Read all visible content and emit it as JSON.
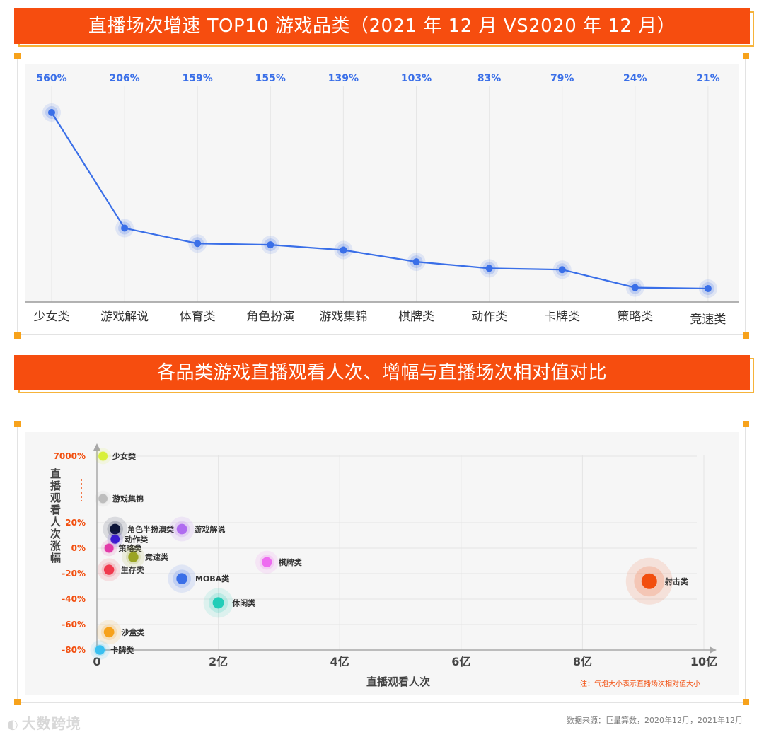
{
  "section1": {
    "title": "直播场次增速 TOP10 游戏品类（2021 年 12 月 VS2020 年 12 月）"
  },
  "section2": {
    "title": "各品类游戏直播观看人次、增幅与直播场次相对值对比"
  },
  "source": "数据来源：巨量算数，2020年12月，2021年12月",
  "logo_text": "大数跨境",
  "colors": {
    "banner": "#f64d0f",
    "line": "#3a6fe8",
    "value_label": "#3a6fe8",
    "axis_label_orange": "#f24e0e"
  },
  "chart_data": [
    {
      "type": "line",
      "categories": [
        "少女类",
        "游戏解说",
        "体育类",
        "角色扮演",
        "游戏集锦",
        "棋牌类",
        "动作类",
        "卡牌类",
        "策略类",
        "竞速类"
      ],
      "values": [
        560,
        206,
        159,
        155,
        139,
        103,
        83,
        79,
        24,
        21
      ],
      "value_labels": [
        "560%",
        "206%",
        "159%",
        "155%",
        "139%",
        "103%",
        "83%",
        "79%",
        "24%",
        "21%"
      ],
      "unit": "%"
    },
    {
      "type": "scatter",
      "xlabel": "直播观看人次",
      "ylabel": "直播观看人次涨幅",
      "xticks": [
        "0",
        "2亿",
        "4亿",
        "6亿",
        "8亿",
        "10亿"
      ],
      "xlim": [
        0,
        10
      ],
      "yticks": [
        "7000%",
        "20%",
        "0%",
        "-20%",
        "-40%",
        "-60%",
        "-80%"
      ],
      "annotation": "注：气泡大小表示直播场次相对值大小",
      "points": [
        {
          "name": "少女类",
          "x": 0.1,
          "y": 7000,
          "size": 0.1,
          "color": "#d8f03a"
        },
        {
          "name": "游戏集锦",
          "x": 0.1,
          "y": 3500,
          "size": 0.1,
          "color": "#bdbdbd"
        },
        {
          "name": "角色半扮演类",
          "x": 0.3,
          "y": 15,
          "size": 0.35,
          "color": "#0d1538"
        },
        {
          "name": "动作类",
          "x": 0.3,
          "y": 7,
          "size": 0.1,
          "color": "#3a1bd0"
        },
        {
          "name": "策略类",
          "x": 0.2,
          "y": 0,
          "size": 0.1,
          "color": "#e23aa8"
        },
        {
          "name": "竞速类",
          "x": 0.6,
          "y": -7,
          "size": 0.3,
          "color": "#9aa424"
        },
        {
          "name": "生存类",
          "x": 0.2,
          "y": -17,
          "size": 0.3,
          "color": "#f03a4e"
        },
        {
          "name": "游戏解说",
          "x": 1.4,
          "y": 15,
          "size": 0.35,
          "color": "#b06cf0"
        },
        {
          "name": "棋牌类",
          "x": 2.8,
          "y": -11,
          "size": 0.3,
          "color": "#ee6cf0"
        },
        {
          "name": "MOBA类",
          "x": 1.4,
          "y": -24,
          "size": 0.45,
          "color": "#3a6fe8"
        },
        {
          "name": "休闲类",
          "x": 2.0,
          "y": -43,
          "size": 0.5,
          "color": "#22cdb8"
        },
        {
          "name": "沙盒类",
          "x": 0.2,
          "y": -66,
          "size": 0.35,
          "color": "#f7a21b"
        },
        {
          "name": "卡牌类",
          "x": 0.05,
          "y": -80,
          "size": 0.2,
          "color": "#3ac0f0"
        },
        {
          "name": "射击类",
          "x": 9.1,
          "y": -26,
          "size": 1.0,
          "color": "#f24e0e"
        }
      ]
    }
  ]
}
